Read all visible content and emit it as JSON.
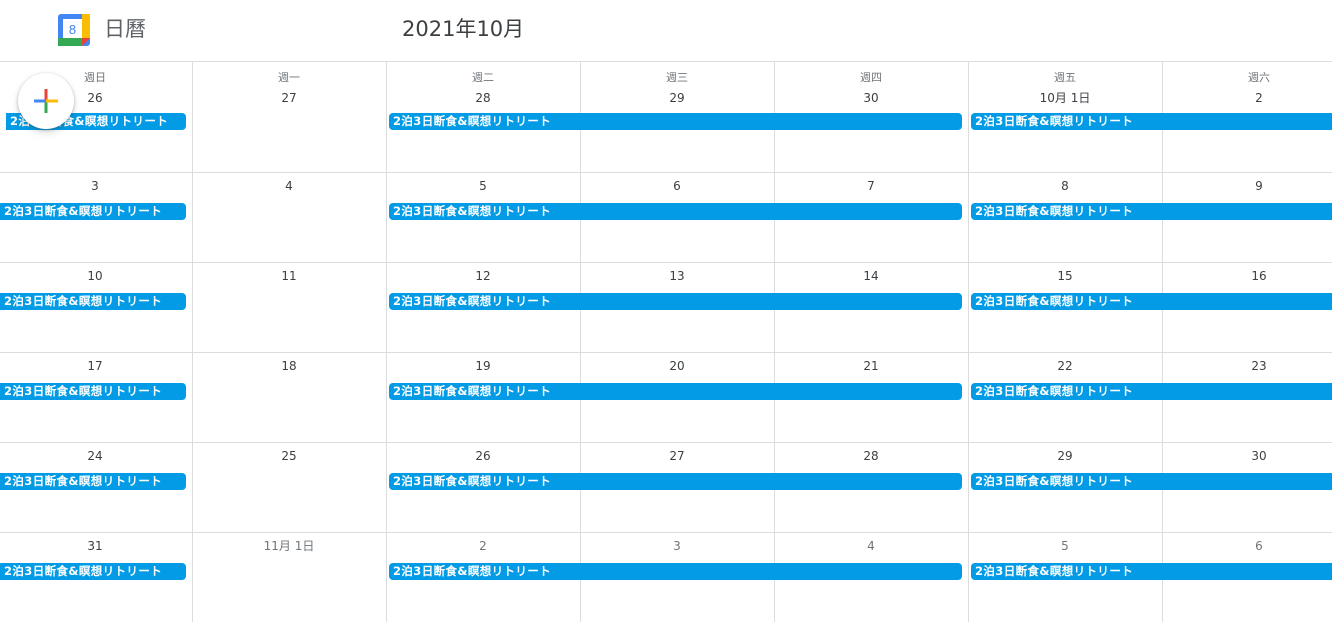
{
  "header": {
    "app_title": "日曆",
    "logo_number": "8",
    "month_title": "2021年10月"
  },
  "weekdays": [
    "週日",
    "週一",
    "週二",
    "週三",
    "週四",
    "週五",
    "週六"
  ],
  "weeks": [
    {
      "days": [
        {
          "label": "26",
          "muted": false
        },
        {
          "label": "27",
          "muted": false
        },
        {
          "label": "28",
          "muted": false
        },
        {
          "label": "29",
          "muted": false
        },
        {
          "label": "30",
          "muted": false
        },
        {
          "label": "10月 1日",
          "muted": false
        },
        {
          "label": "2",
          "muted": false
        }
      ],
      "events": [
        {
          "title": "2泊3日断食&瞑想リトリート",
          "start": 0,
          "span": 1,
          "continues_before": true,
          "continues_after": false
        },
        {
          "title": "2泊3日断食&瞑想リトリート",
          "start": 2,
          "span": 3,
          "continues_before": false,
          "continues_after": false
        },
        {
          "title": "2泊3日断食&瞑想リトリート",
          "start": 5,
          "span": 2,
          "continues_before": false,
          "continues_after": true
        }
      ]
    },
    {
      "days": [
        {
          "label": "3",
          "muted": false
        },
        {
          "label": "4",
          "muted": false
        },
        {
          "label": "5",
          "muted": false
        },
        {
          "label": "6",
          "muted": false
        },
        {
          "label": "7",
          "muted": false
        },
        {
          "label": "8",
          "muted": false
        },
        {
          "label": "9",
          "muted": false
        }
      ],
      "events": [
        {
          "title": "2泊3日断食&瞑想リトリート",
          "start": 0,
          "span": 1,
          "continues_before": true,
          "continues_after": false
        },
        {
          "title": "2泊3日断食&瞑想リトリート",
          "start": 2,
          "span": 3,
          "continues_before": false,
          "continues_after": false
        },
        {
          "title": "2泊3日断食&瞑想リトリート",
          "start": 5,
          "span": 2,
          "continues_before": false,
          "continues_after": true
        }
      ]
    },
    {
      "days": [
        {
          "label": "10",
          "muted": false
        },
        {
          "label": "11",
          "muted": false
        },
        {
          "label": "12",
          "muted": false
        },
        {
          "label": "13",
          "muted": false
        },
        {
          "label": "14",
          "muted": false
        },
        {
          "label": "15",
          "muted": false
        },
        {
          "label": "16",
          "muted": false
        }
      ],
      "events": [
        {
          "title": "2泊3日断食&瞑想リトリート",
          "start": 0,
          "span": 1,
          "continues_before": true,
          "continues_after": false
        },
        {
          "title": "2泊3日断食&瞑想リトリート",
          "start": 2,
          "span": 3,
          "continues_before": false,
          "continues_after": false
        },
        {
          "title": "2泊3日断食&瞑想リトリート",
          "start": 5,
          "span": 2,
          "continues_before": false,
          "continues_after": true
        }
      ]
    },
    {
      "days": [
        {
          "label": "17",
          "muted": false
        },
        {
          "label": "18",
          "muted": false
        },
        {
          "label": "19",
          "muted": false
        },
        {
          "label": "20",
          "muted": false
        },
        {
          "label": "21",
          "muted": false
        },
        {
          "label": "22",
          "muted": false
        },
        {
          "label": "23",
          "muted": false
        }
      ],
      "events": [
        {
          "title": "2泊3日断食&瞑想リトリート",
          "start": 0,
          "span": 1,
          "continues_before": true,
          "continues_after": false
        },
        {
          "title": "2泊3日断食&瞑想リトリート",
          "start": 2,
          "span": 3,
          "continues_before": false,
          "continues_after": false
        },
        {
          "title": "2泊3日断食&瞑想リトリート",
          "start": 5,
          "span": 2,
          "continues_before": false,
          "continues_after": true
        }
      ]
    },
    {
      "days": [
        {
          "label": "24",
          "muted": false
        },
        {
          "label": "25",
          "muted": false
        },
        {
          "label": "26",
          "muted": false
        },
        {
          "label": "27",
          "muted": false
        },
        {
          "label": "28",
          "muted": false
        },
        {
          "label": "29",
          "muted": false
        },
        {
          "label": "30",
          "muted": false
        }
      ],
      "events": [
        {
          "title": "2泊3日断食&瞑想リトリート",
          "start": 0,
          "span": 1,
          "continues_before": true,
          "continues_after": false
        },
        {
          "title": "2泊3日断食&瞑想リトリート",
          "start": 2,
          "span": 3,
          "continues_before": false,
          "continues_after": false
        },
        {
          "title": "2泊3日断食&瞑想リトリート",
          "start": 5,
          "span": 2,
          "continues_before": false,
          "continues_after": true
        }
      ]
    },
    {
      "days": [
        {
          "label": "31",
          "muted": false
        },
        {
          "label": "11月 1日",
          "muted": true
        },
        {
          "label": "2",
          "muted": true
        },
        {
          "label": "3",
          "muted": true
        },
        {
          "label": "4",
          "muted": true
        },
        {
          "label": "5",
          "muted": true
        },
        {
          "label": "6",
          "muted": true
        }
      ],
      "events": [
        {
          "title": "2泊3日断食&瞑想リトリート",
          "start": 0,
          "span": 1,
          "continues_before": true,
          "continues_after": false
        },
        {
          "title": "2泊3日断食&瞑想リトリート",
          "start": 2,
          "span": 3,
          "continues_before": false,
          "continues_after": false
        },
        {
          "title": "2泊3日断食&瞑想リトリート",
          "start": 5,
          "span": 2,
          "continues_before": false,
          "continues_after": true
        }
      ]
    }
  ],
  "colors": {
    "event": "#039be5",
    "grid_line": "#dadce0",
    "logo_blue": "#4285f4",
    "logo_green": "#34a853",
    "logo_yellow": "#fbbc04",
    "logo_red": "#ea4335"
  },
  "icons": {
    "logo": "google-calendar-logo",
    "create": "plus-icon"
  }
}
